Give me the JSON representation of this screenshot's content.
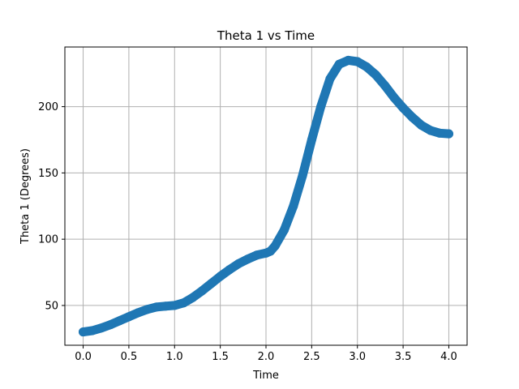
{
  "chart_data": {
    "type": "scatter",
    "title": "Theta 1 vs Time",
    "xlabel": "Time",
    "ylabel": "Theta 1 (Degrees)",
    "xlim": [
      -0.2,
      4.2
    ],
    "ylim": [
      20,
      245
    ],
    "xticks": [
      0.0,
      0.5,
      1.0,
      1.5,
      2.0,
      2.5,
      3.0,
      3.5,
      4.0
    ],
    "xtick_labels": [
      "0.0",
      "0.5",
      "1.0",
      "1.5",
      "2.0",
      "2.5",
      "3.0",
      "3.5",
      "4.0"
    ],
    "yticks": [
      50,
      100,
      150,
      200
    ],
    "ytick_labels": [
      "50",
      "100",
      "150",
      "200"
    ],
    "grid": true,
    "series": [
      {
        "color": "#1f77b4",
        "x": [
          0.0,
          0.1,
          0.2,
          0.3,
          0.4,
          0.5,
          0.6,
          0.7,
          0.8,
          0.9,
          1.0,
          1.1,
          1.2,
          1.3,
          1.4,
          1.5,
          1.6,
          1.7,
          1.8,
          1.9,
          2.0,
          2.05,
          2.1,
          2.2,
          2.3,
          2.4,
          2.5,
          2.6,
          2.7,
          2.8,
          2.9,
          3.0,
          3.1,
          3.2,
          3.3,
          3.4,
          3.5,
          3.6,
          3.7,
          3.8,
          3.9,
          4.0
        ],
        "y": [
          30,
          31,
          33,
          35.5,
          38.5,
          41.5,
          44.5,
          47,
          48.8,
          49.5,
          50,
          52,
          56,
          61,
          66.5,
          72,
          77,
          81.5,
          85,
          88,
          89.5,
          91,
          95,
          107,
          125,
          148,
          175,
          200,
          221,
          232,
          235,
          234,
          230,
          224,
          216,
          207,
          199,
          192,
          186,
          182,
          180,
          179.5
        ]
      }
    ]
  }
}
